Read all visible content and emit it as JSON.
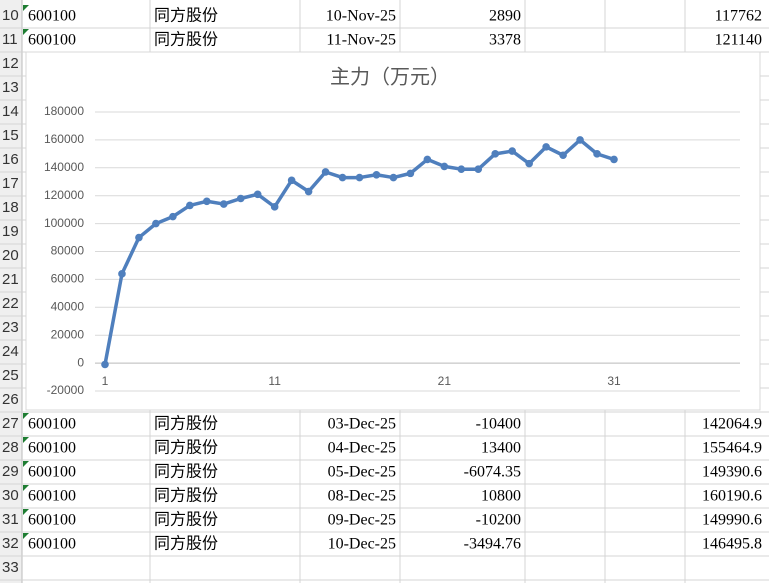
{
  "row_numbers": [
    10,
    11,
    12,
    13,
    14,
    15,
    16,
    17,
    18,
    19,
    20,
    21,
    22,
    23,
    24,
    25,
    26,
    27,
    28,
    29,
    30,
    31,
    32,
    33
  ],
  "table": {
    "rows": [
      {
        "row": 10,
        "code": "600100",
        "name": "同方股份",
        "date": "10-Nov-25",
        "change": 2890,
        "total": 117762
      },
      {
        "row": 11,
        "code": "600100",
        "name": "同方股份",
        "date": "11-Nov-25",
        "change": 3378,
        "total": 121140
      },
      {
        "row": 27,
        "code": "600100",
        "name": "同方股份",
        "date": "03-Dec-25",
        "change": -10400,
        "total": 142064.9
      },
      {
        "row": 28,
        "code": "600100",
        "name": "同方股份",
        "date": "04-Dec-25",
        "change": 13400,
        "total": 155464.9
      },
      {
        "row": 29,
        "code": "600100",
        "name": "同方股份",
        "date": "05-Dec-25",
        "change": -6074.35,
        "total": 149390.6
      },
      {
        "row": 30,
        "code": "600100",
        "name": "同方股份",
        "date": "08-Dec-25",
        "change": 10800,
        "total": 160190.6
      },
      {
        "row": 31,
        "code": "600100",
        "name": "同方股份",
        "date": "09-Dec-25",
        "change": -10200,
        "total": 149990.6
      },
      {
        "row": 32,
        "code": "600100",
        "name": "同方股份",
        "date": "10-Dec-25",
        "change": -3494.76,
        "total": 146495.8
      }
    ]
  },
  "chart_data": {
    "type": "line",
    "title": "主力（万元）",
    "categories": [
      1,
      null,
      null,
      null,
      null,
      null,
      null,
      null,
      null,
      null,
      11,
      null,
      null,
      null,
      null,
      null,
      null,
      null,
      null,
      null,
      21,
      null,
      null,
      null,
      null,
      null,
      null,
      null,
      null,
      null,
      31
    ],
    "values": [
      -1000,
      64000,
      90000,
      100000,
      105000,
      113000,
      116000,
      114000,
      118000,
      121000,
      112000,
      131000,
      123000,
      137000,
      133000,
      133000,
      135000,
      133000,
      136000,
      146000,
      141000,
      139000,
      139000,
      150000,
      152000,
      143000,
      155000,
      149000,
      160000,
      150000,
      146000
    ],
    "color": "#4f7fbd",
    "ylim": [
      -20000,
      180000
    ],
    "yticks": [
      -20000,
      0,
      20000,
      40000,
      60000,
      80000,
      100000,
      120000,
      140000,
      160000,
      180000
    ],
    "grid": true
  }
}
